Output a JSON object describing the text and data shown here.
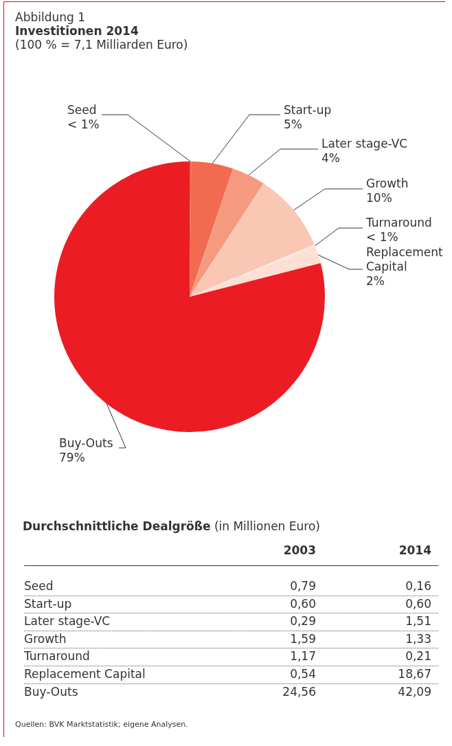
{
  "chart_data": [
    {
      "type": "pie",
      "title": "Investitionen 2014",
      "subtitle": "(100 % = 7,1 Milliarden Euro)",
      "annotations": [
        "Abbildung 1"
      ],
      "categories": [
        "Seed",
        "Start-up",
        "Later stage-VC",
        "Growth",
        "Turnaround",
        "Replacement Capital",
        "Buy-Outs"
      ],
      "values": [
        0.2,
        5,
        4,
        9.5,
        0.3,
        2,
        79
      ],
      "value_labels": [
        "< 1%",
        "5%",
        "4%",
        "10%",
        "< 1%",
        "2%",
        "79%"
      ],
      "colors": [
        "#f0654a",
        "#f26a50",
        "#f59a7f",
        "#fac7b4",
        "#fde8df",
        "#fde0d3",
        "#ec1c24"
      ]
    },
    {
      "type": "other",
      "title": "Durchschnittliche Dealgröße",
      "subtitle": "(in Millionen Euro)",
      "annotations": [
        "Quellen: BVK Marktstatistik; eigene Analysen."
      ],
      "categories": [
        "Seed",
        "Start-up",
        "Later stage-VC",
        "Growth",
        "Turnaround",
        "Replacement Capital",
        "Buy-Outs"
      ],
      "series": [
        {
          "name": "2003",
          "values": [
            0.79,
            0.6,
            0.29,
            1.59,
            1.17,
            0.54,
            24.56
          ],
          "value_labels": [
            "0,79",
            "0,60",
            "0,29",
            "1,59",
            "1,17",
            "0,54",
            "24,56"
          ]
        },
        {
          "name": "2014",
          "values": [
            0.16,
            0.6,
            1.51,
            1.33,
            0.21,
            18.67,
            42.09
          ],
          "value_labels": [
            "0,16",
            "0,60",
            "1,51",
            "1,33",
            "0,21",
            "18,67",
            "42,09"
          ]
        }
      ]
    }
  ]
}
